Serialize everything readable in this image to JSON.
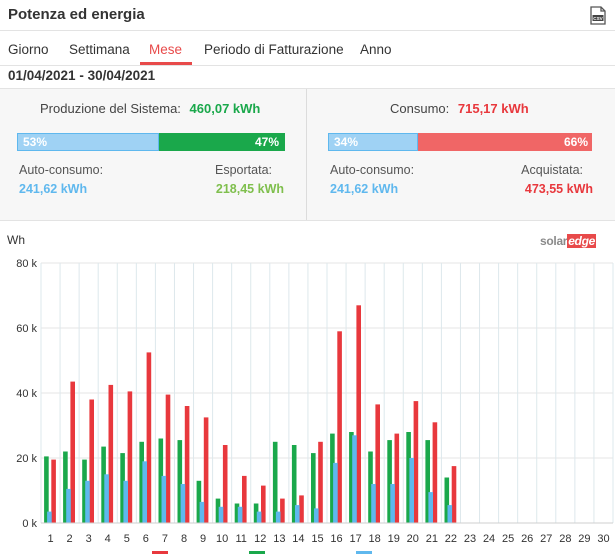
{
  "header": {
    "title": "Potenza ed energia",
    "csv_icon": "csv-file-icon"
  },
  "tabs": [
    {
      "label": "Giorno",
      "active": false
    },
    {
      "label": "Settimana",
      "active": false
    },
    {
      "label": "Mese",
      "active": true
    },
    {
      "label": "Periodo di Fatturazione",
      "active": false
    },
    {
      "label": "Anno",
      "active": false
    }
  ],
  "date_range": "01/04/2021 - 30/04/2021",
  "production": {
    "title": "Produzione del Sistema:",
    "value": "460,07 kWh",
    "self_pct": 53,
    "self_pct_label": "53%",
    "export_pct_label": "47%",
    "self_label": "Auto-consumo:",
    "self_value": "241,62 kWh",
    "export_label": "Esportata:",
    "export_value": "218,45 kWh"
  },
  "consumption": {
    "title": "Consumo:",
    "value": "715,17 kWh",
    "self_pct": 34,
    "self_pct_label": "34%",
    "import_pct_label": "66%",
    "self_label": "Auto-consumo:",
    "self_value": "241,62 kWh",
    "import_label": "Acquistata:",
    "import_value": "473,55 kWh"
  },
  "colors": {
    "accent": "#e84a4a",
    "production": "#1aa84b",
    "consumption": "#e8383d",
    "self_consumption": "#5fb8ee",
    "self_bar": "#9fd2f4",
    "export_text": "#7fbf4d",
    "import_text": "#e8383d"
  },
  "chart": {
    "unit": "Wh",
    "logo_solar": "solar",
    "logo_edge": "edge"
  },
  "chart_data": {
    "type": "bar",
    "ylabel": "Wh",
    "ylim": [
      0,
      80000
    ],
    "yticks": [
      "0 k",
      "20 k",
      "40 k",
      "60 k",
      "80 k"
    ],
    "categories": [
      "1",
      "2",
      "3",
      "4",
      "5",
      "6",
      "7",
      "8",
      "9",
      "10",
      "11",
      "12",
      "13",
      "14",
      "15",
      "16",
      "17",
      "18",
      "19",
      "20",
      "21",
      "22",
      "23",
      "24",
      "25",
      "26",
      "27",
      "28",
      "29",
      "30"
    ],
    "series": [
      {
        "color": "#1aa84b",
        "values": [
          20500,
          22000,
          19500,
          23500,
          21500,
          25000,
          26000,
          25500,
          13000,
          7500,
          6000,
          6000,
          25000,
          24000,
          21500,
          27500,
          28000,
          22000,
          25500,
          28000,
          25500,
          14000,
          null,
          null,
          null,
          null,
          null,
          null,
          null,
          null
        ]
      },
      {
        "color": "#e8383d",
        "values": [
          19500,
          43500,
          38000,
          42500,
          40500,
          52500,
          39500,
          36000,
          32500,
          24000,
          14500,
          11500,
          7500,
          8500,
          25000,
          59000,
          67000,
          36500,
          27500,
          37500,
          31000,
          17500,
          null,
          null,
          null,
          null,
          null,
          null,
          null,
          null
        ]
      },
      {
        "color": "#5fb8ee",
        "values": [
          3500,
          10500,
          13000,
          15000,
          13000,
          19000,
          14500,
          12000,
          6500,
          5000,
          5000,
          3500,
          3500,
          5500,
          4500,
          18500,
          27000,
          12000,
          12000,
          20000,
          9500,
          5500,
          null,
          null,
          null,
          null,
          null,
          null,
          null,
          null
        ]
      }
    ]
  }
}
